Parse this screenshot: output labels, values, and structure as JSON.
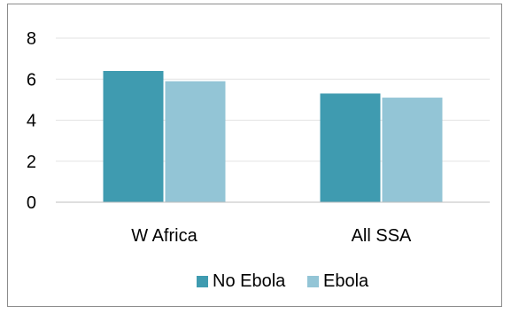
{
  "chart_data": {
    "type": "bar",
    "categories": [
      "W Africa",
      "All SSA"
    ],
    "series": [
      {
        "name": "No Ebola",
        "values": [
          6.4,
          5.3
        ],
        "color": "#3f9bb0"
      },
      {
        "name": "Ebola",
        "values": [
          5.9,
          5.1
        ],
        "color": "#93c5d6"
      }
    ],
    "ylim": [
      0,
      8
    ],
    "yticks": [
      0,
      2,
      4,
      6,
      8
    ],
    "grid": true,
    "legend": "bottom",
    "colors": {
      "grid": "#e3e3e3",
      "axis": "#bfbfbf",
      "frame": "#8c8c8c"
    }
  }
}
